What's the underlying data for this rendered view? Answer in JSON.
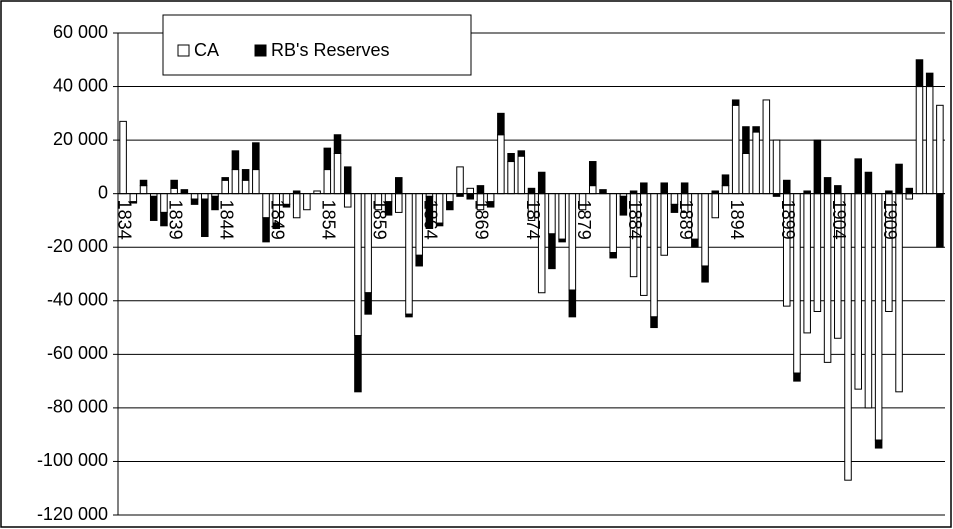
{
  "chart_data": {
    "type": "bar",
    "stacked": true,
    "categories": [
      "1834",
      null,
      null,
      null,
      null,
      "1839",
      null,
      null,
      null,
      null,
      "1844",
      null,
      null,
      null,
      null,
      "1849",
      null,
      null,
      null,
      null,
      "1854",
      null,
      null,
      null,
      null,
      "1859",
      null,
      null,
      null,
      null,
      "1864",
      null,
      null,
      null,
      null,
      "1869",
      null,
      null,
      null,
      null,
      "1874",
      null,
      null,
      null,
      null,
      "1879",
      null,
      null,
      null,
      null,
      "1884",
      null,
      null,
      null,
      null,
      "1889",
      null,
      null,
      null,
      null,
      "1894",
      null,
      null,
      null,
      null,
      "1899",
      null,
      null,
      null,
      null,
      "1904",
      null,
      null,
      null,
      null,
      "1909",
      null,
      null,
      null,
      null,
      null
    ],
    "series": [
      {
        "name": "CA",
        "color": "#ffffff",
        "values": [
          27000,
          -3000,
          3000,
          -1000,
          -7000,
          2000,
          0,
          -2000,
          -2000,
          -1000,
          5000,
          9000,
          5000,
          9000,
          -9000,
          -11000,
          -4000,
          -9000,
          -6000,
          1000,
          9000,
          15000,
          -5000,
          -53000,
          -37000,
          -6000,
          -3000,
          -7000,
          -45000,
          -23000,
          -1000,
          -11000,
          -3000,
          10000,
          2000,
          -6000,
          -3000,
          22000,
          12000,
          14000,
          -10000,
          -37000,
          -15000,
          -17000,
          -36000,
          -6000,
          3000,
          0,
          -22000,
          -1000,
          -31000,
          -38000,
          -46000,
          -23000,
          -4000,
          -7000,
          -17000,
          -27000,
          -9000,
          3000,
          33000,
          15000,
          23000,
          35000,
          20000,
          -42000,
          -67000,
          -52000,
          -44000,
          -63000,
          -54000,
          -107000,
          -73000,
          -80000,
          -92000,
          -44000,
          -74000,
          -2000,
          40000,
          40000,
          33000
        ]
      },
      {
        "name": "RB's Reserves",
        "color": "#000000",
        "values": [
          0,
          -500,
          2000,
          -9000,
          -5000,
          3000,
          1500,
          -2000,
          -14000,
          -5000,
          1000,
          7000,
          4000,
          10000,
          -9000,
          -2000,
          -1000,
          1000,
          0,
          0,
          8000,
          7000,
          10000,
          -21000,
          -8000,
          0,
          -5000,
          6000,
          -1000,
          -4000,
          -12000,
          -1000,
          -3000,
          -1000,
          -2000,
          3000,
          -2000,
          8000,
          3000,
          2000,
          2000,
          8000,
          -13000,
          -1000,
          -10000,
          0,
          9000,
          1500,
          -2000,
          -7000,
          1000,
          4000,
          -4000,
          4000,
          -3000,
          4000,
          -3000,
          -6000,
          1000,
          4000,
          2000,
          10000,
          2000,
          0,
          -1000,
          5000,
          -3000,
          1000,
          20000,
          6000,
          3000,
          0,
          13000,
          8000,
          -3000,
          1000,
          11000,
          2000,
          10000,
          5000,
          -20000
        ]
      }
    ],
    "ylim": [
      -120000,
      60000
    ],
    "yticks": [
      {
        "value": -120000,
        "label": "-120 000"
      },
      {
        "value": -100000,
        "label": "-100 000"
      },
      {
        "value": -80000,
        "label": "-80 000"
      },
      {
        "value": -60000,
        "label": "-60 000"
      },
      {
        "value": -40000,
        "label": "-40 000"
      },
      {
        "value": -20000,
        "label": "-20 000"
      },
      0,
      {
        "value": 20000,
        "label": "20 000"
      },
      {
        "value": 40000,
        "label": "40 000"
      },
      {
        "value": 60000,
        "label": "60 000"
      }
    ],
    "grid": true,
    "legend": "top-left"
  }
}
